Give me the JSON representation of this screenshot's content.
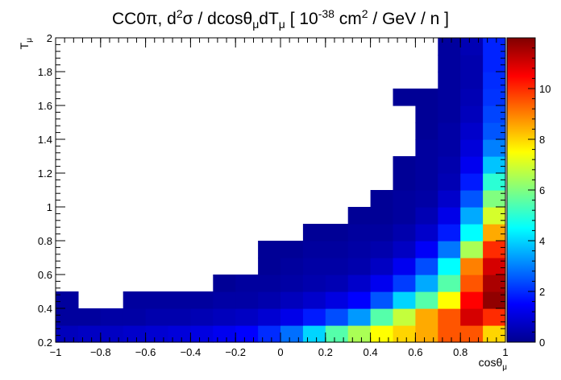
{
  "chart_data": {
    "type": "heatmap",
    "title": {
      "main": "CC0π, d",
      "sup1": "2",
      "mid1": "σ / dcosθ",
      "sub1": "μ",
      "mid2": "dT",
      "sub2": "μ",
      "mid3": " [ 10",
      "sup2": "-38",
      "mid4": " cm",
      "sup3": "2",
      "end": " / GeV / n ]"
    },
    "xlabel": {
      "base": "cosθ",
      "sub": "μ"
    },
    "ylabel": {
      "base": "T",
      "sub": "μ"
    },
    "xlim": [
      -1,
      1
    ],
    "ylim": [
      0.2,
      2
    ],
    "zlim": [
      0,
      12
    ],
    "x_edges": [
      -1.0,
      -0.9,
      -0.8,
      -0.7,
      -0.6,
      -0.5,
      -0.4,
      -0.3,
      -0.2,
      -0.1,
      0.0,
      0.1,
      0.2,
      0.3,
      0.4,
      0.5,
      0.6,
      0.7,
      0.8,
      0.9,
      1.0
    ],
    "y_edges": [
      0.2,
      0.3,
      0.4,
      0.5,
      0.6,
      0.7,
      0.8,
      0.9,
      1.0,
      1.1,
      1.2,
      1.3,
      1.4,
      1.5,
      1.6,
      1.7,
      1.8,
      1.9,
      2.0
    ],
    "z": [
      [
        0.6,
        0.7,
        0.7,
        0.8,
        0.9,
        1.0,
        1.1,
        1.3,
        1.5,
        2.0,
        2.8,
        4.0,
        5.5,
        6.5,
        7.5,
        8.0,
        8.5,
        9.5,
        9.5,
        8.0
      ],
      [
        0.2,
        0.2,
        0.3,
        0.3,
        0.4,
        0.4,
        0.5,
        0.6,
        0.7,
        0.9,
        1.2,
        1.8,
        2.4,
        3.3,
        5.5,
        6.8,
        8.5,
        9.5,
        11.0,
        10.0
      ],
      [
        0.2,
        null,
        null,
        0.2,
        0.2,
        0.2,
        0.2,
        0.3,
        0.3,
        0.4,
        0.6,
        0.8,
        1.1,
        1.5,
        2.5,
        4.0,
        5.5,
        7.5,
        10.5,
        11.8
      ],
      [
        null,
        null,
        null,
        null,
        null,
        null,
        null,
        0.1,
        0.2,
        0.2,
        0.3,
        0.4,
        0.5,
        0.8,
        1.3,
        2.2,
        3.5,
        5.5,
        9.5,
        11.5
      ],
      [
        null,
        null,
        null,
        null,
        null,
        null,
        null,
        null,
        null,
        0.1,
        0.2,
        0.3,
        0.3,
        0.4,
        0.7,
        1.3,
        2.4,
        4.5,
        9.0,
        11.0
      ],
      [
        null,
        null,
        null,
        null,
        null,
        null,
        null,
        null,
        null,
        0.1,
        0.1,
        0.2,
        0.2,
        0.3,
        0.4,
        0.7,
        1.4,
        2.9,
        6.5,
        10.0
      ],
      [
        null,
        null,
        null,
        null,
        null,
        null,
        null,
        null,
        null,
        null,
        null,
        0.1,
        0.1,
        0.2,
        0.2,
        0.4,
        0.8,
        1.8,
        4.5,
        8.5
      ],
      [
        null,
        null,
        null,
        null,
        null,
        null,
        null,
        null,
        null,
        null,
        null,
        null,
        null,
        0.1,
        0.1,
        0.2,
        0.5,
        1.2,
        3.5,
        7.0
      ],
      [
        null,
        null,
        null,
        null,
        null,
        null,
        null,
        null,
        null,
        null,
        null,
        null,
        null,
        null,
        0.1,
        0.2,
        0.3,
        0.8,
        2.5,
        6.0
      ],
      [
        null,
        null,
        null,
        null,
        null,
        null,
        null,
        null,
        null,
        null,
        null,
        null,
        null,
        null,
        null,
        0.1,
        0.2,
        0.5,
        1.8,
        5.0
      ],
      [
        null,
        null,
        null,
        null,
        null,
        null,
        null,
        null,
        null,
        null,
        null,
        null,
        null,
        null,
        null,
        0.1,
        0.2,
        0.4,
        1.3,
        3.8
      ],
      [
        null,
        null,
        null,
        null,
        null,
        null,
        null,
        null,
        null,
        null,
        null,
        null,
        null,
        null,
        null,
        null,
        0.2,
        0.3,
        1.0,
        3.0
      ],
      [
        null,
        null,
        null,
        null,
        null,
        null,
        null,
        null,
        null,
        null,
        null,
        null,
        null,
        null,
        null,
        null,
        0.1,
        0.3,
        0.8,
        2.5
      ],
      [
        null,
        null,
        null,
        null,
        null,
        null,
        null,
        null,
        null,
        null,
        null,
        null,
        null,
        null,
        null,
        null,
        0.1,
        0.2,
        0.6,
        2.3
      ],
      [
        null,
        null,
        null,
        null,
        null,
        null,
        null,
        null,
        null,
        null,
        null,
        null,
        null,
        null,
        null,
        0.1,
        0.1,
        0.2,
        0.5,
        2.1
      ],
      [
        null,
        null,
        null,
        null,
        null,
        null,
        null,
        null,
        null,
        null,
        null,
        null,
        null,
        null,
        null,
        null,
        null,
        0.2,
        0.4,
        2.0
      ],
      [
        null,
        null,
        null,
        null,
        null,
        null,
        null,
        null,
        null,
        null,
        null,
        null,
        null,
        null,
        null,
        null,
        null,
        0.2,
        0.4,
        1.9
      ],
      [
        null,
        null,
        null,
        null,
        null,
        null,
        null,
        null,
        null,
        null,
        null,
        null,
        null,
        null,
        null,
        null,
        null,
        0.2,
        0.5,
        1.9
      ]
    ],
    "x_ticks": [
      -1,
      -0.8,
      -0.6,
      -0.4,
      -0.2,
      0,
      0.2,
      0.4,
      0.6,
      0.8,
      1
    ],
    "x_tick_labels": [
      "−1",
      "−0.8",
      "−0.6",
      "−0.4",
      "−0.2",
      "0",
      "0.2",
      "0.4",
      "0.6",
      "0.8",
      "1"
    ],
    "y_ticks": [
      0.2,
      0.4,
      0.6,
      0.8,
      1,
      1.2,
      1.4,
      1.6,
      1.8,
      2
    ],
    "y_tick_labels": [
      "0.2",
      "0.4",
      "0.6",
      "0.8",
      "1",
      "1.2",
      "1.4",
      "1.6",
      "1.8",
      "2"
    ],
    "z_ticks": [
      0,
      2,
      4,
      6,
      8,
      10
    ],
    "z_tick_labels": [
      "0",
      "2",
      "4",
      "6",
      "8",
      "10"
    ],
    "colormap": [
      "#00008f",
      "#0000ff",
      "#0080ff",
      "#00ffff",
      "#80ff80",
      "#ffff00",
      "#ff8000",
      "#ff0000",
      "#800000"
    ],
    "grid": false,
    "colorbar": "right"
  }
}
